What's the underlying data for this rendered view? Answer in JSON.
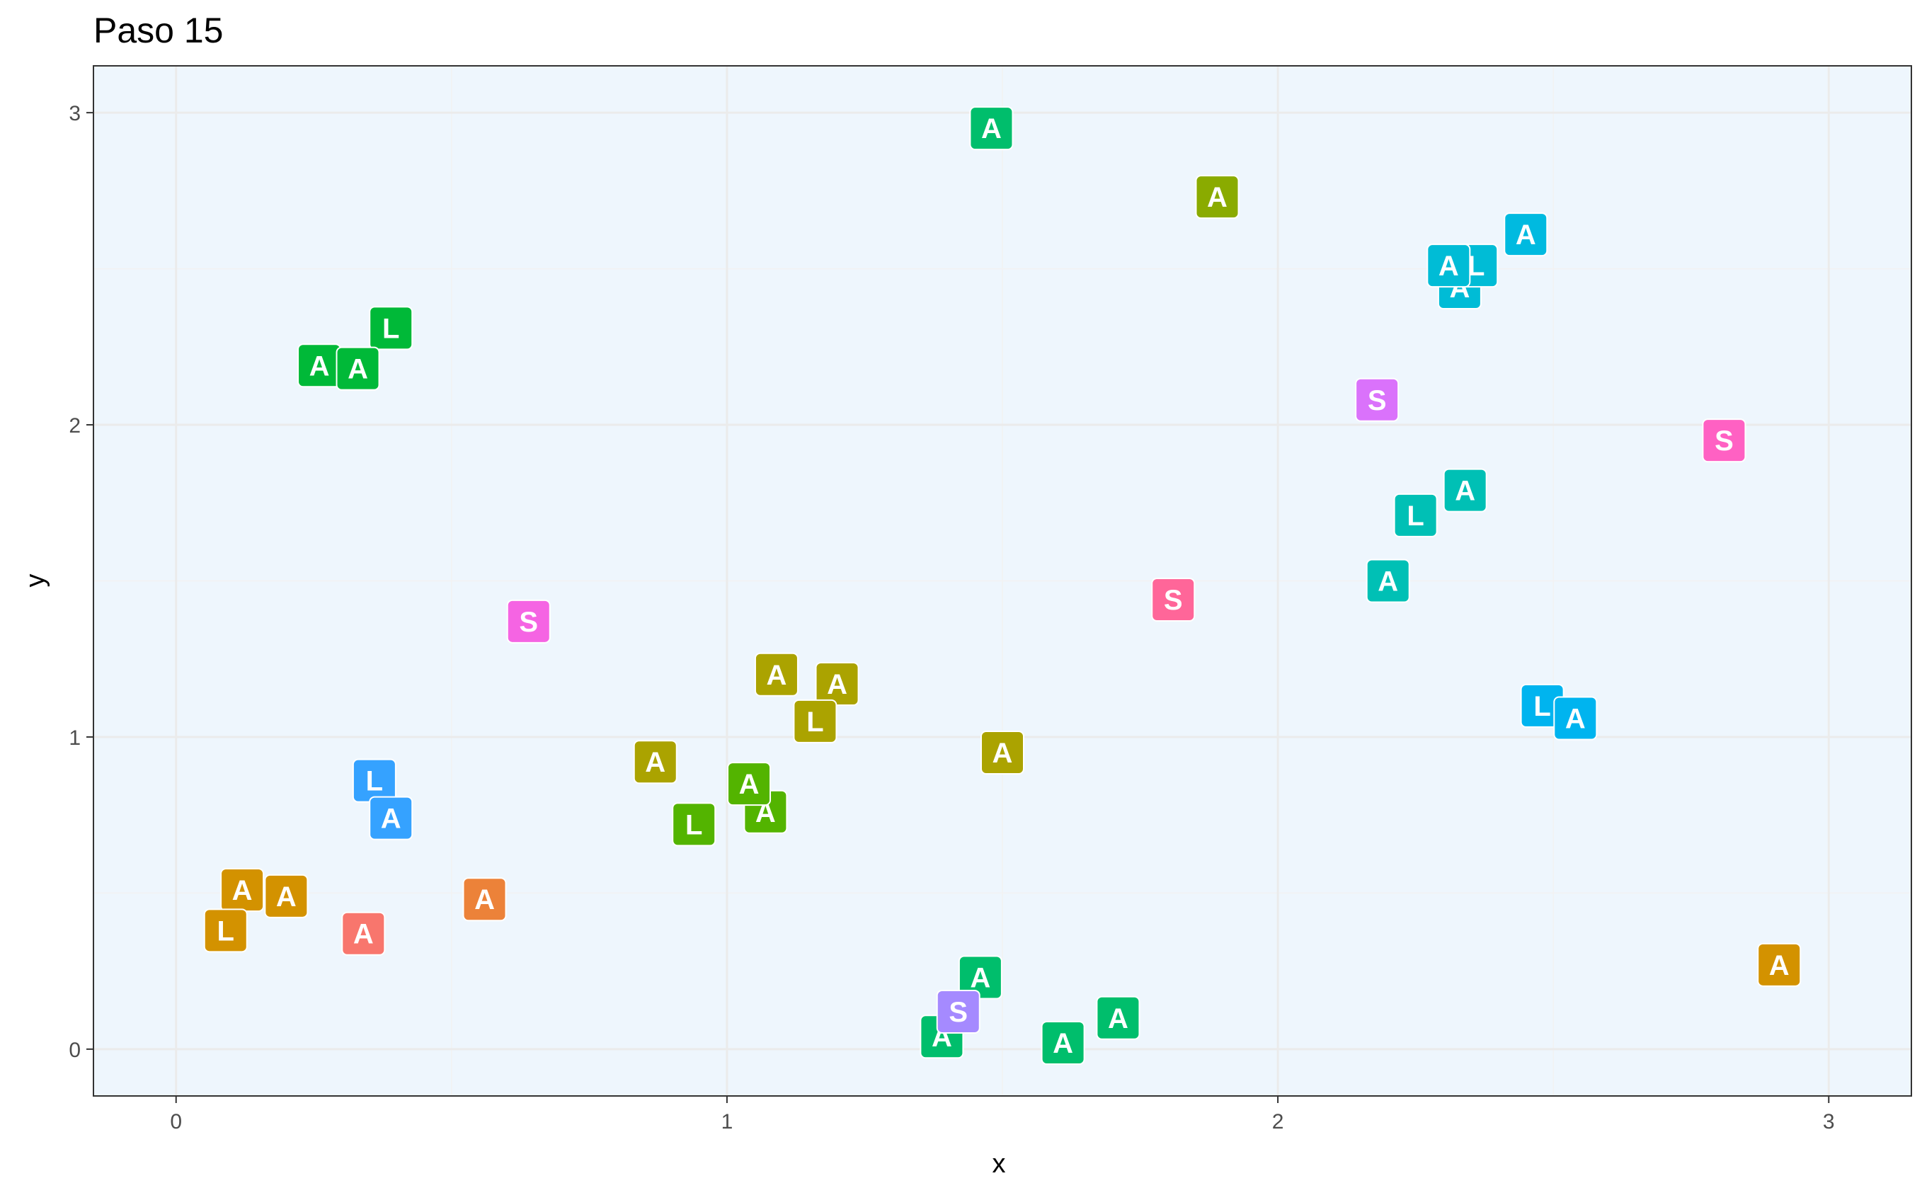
{
  "chart_data": {
    "type": "scatter",
    "title": "Paso 15",
    "xlabel": "x",
    "ylabel": "y",
    "xlim": [
      -0.15,
      3.15
    ],
    "ylim": [
      -0.15,
      3.15
    ],
    "x_ticks": [
      0,
      1,
      2,
      3
    ],
    "y_ticks": [
      0,
      1,
      2,
      3
    ],
    "grid": true,
    "panel_background": "#eef6fd",
    "points": [
      {
        "x": 1.48,
        "y": 2.95,
        "label": "A",
        "color": "#00BE6C"
      },
      {
        "x": 1.89,
        "y": 2.73,
        "label": "A",
        "color": "#8AAB00"
      },
      {
        "x": 0.39,
        "y": 2.31,
        "label": "L",
        "color": "#00B938"
      },
      {
        "x": 0.26,
        "y": 2.19,
        "label": "A",
        "color": "#00B938"
      },
      {
        "x": 0.33,
        "y": 2.18,
        "label": "A",
        "color": "#00B938"
      },
      {
        "x": 2.45,
        "y": 2.61,
        "label": "A",
        "color": "#00BAE0"
      },
      {
        "x": 2.33,
        "y": 2.44,
        "label": "A",
        "color": "#00BCD6"
      },
      {
        "x": 2.36,
        "y": 2.51,
        "label": "L",
        "color": "#00BCD6"
      },
      {
        "x": 2.31,
        "y": 2.51,
        "label": "A",
        "color": "#00BCD6"
      },
      {
        "x": 2.18,
        "y": 2.08,
        "label": "S",
        "color": "#DA72FB"
      },
      {
        "x": 2.81,
        "y": 1.95,
        "label": "S",
        "color": "#FF61C3"
      },
      {
        "x": 2.34,
        "y": 1.79,
        "label": "A",
        "color": "#00C0B5"
      },
      {
        "x": 2.25,
        "y": 1.71,
        "label": "L",
        "color": "#00C0B5"
      },
      {
        "x": 2.2,
        "y": 1.5,
        "label": "A",
        "color": "#00C0B5"
      },
      {
        "x": 1.81,
        "y": 1.44,
        "label": "S",
        "color": "#FF6699"
      },
      {
        "x": 0.64,
        "y": 1.37,
        "label": "S",
        "color": "#F564E3"
      },
      {
        "x": 2.48,
        "y": 1.1,
        "label": "L",
        "color": "#00B4EF"
      },
      {
        "x": 2.54,
        "y": 1.06,
        "label": "A",
        "color": "#00B4EF"
      },
      {
        "x": 1.09,
        "y": 1.2,
        "label": "A",
        "color": "#ABA300"
      },
      {
        "x": 1.2,
        "y": 1.17,
        "label": "A",
        "color": "#ABA300"
      },
      {
        "x": 1.16,
        "y": 1.05,
        "label": "L",
        "color": "#ABA300"
      },
      {
        "x": 1.5,
        "y": 0.95,
        "label": "A",
        "color": "#ABA300"
      },
      {
        "x": 0.87,
        "y": 0.92,
        "label": "A",
        "color": "#ABA300"
      },
      {
        "x": 0.36,
        "y": 0.86,
        "label": "L",
        "color": "#35A2FF"
      },
      {
        "x": 0.39,
        "y": 0.74,
        "label": "A",
        "color": "#35A2FF"
      },
      {
        "x": 1.07,
        "y": 0.76,
        "label": "A",
        "color": "#53B400"
      },
      {
        "x": 1.04,
        "y": 0.85,
        "label": "A",
        "color": "#53B400"
      },
      {
        "x": 0.94,
        "y": 0.72,
        "label": "L",
        "color": "#53B400"
      },
      {
        "x": 0.12,
        "y": 0.51,
        "label": "A",
        "color": "#D39200"
      },
      {
        "x": 0.2,
        "y": 0.49,
        "label": "A",
        "color": "#D39200"
      },
      {
        "x": 0.09,
        "y": 0.38,
        "label": "L",
        "color": "#D39200"
      },
      {
        "x": 0.56,
        "y": 0.48,
        "label": "A",
        "color": "#EC8239"
      },
      {
        "x": 0.34,
        "y": 0.37,
        "label": "A",
        "color": "#F8766D"
      },
      {
        "x": 2.91,
        "y": 0.27,
        "label": "A",
        "color": "#D39200"
      },
      {
        "x": 1.46,
        "y": 0.23,
        "label": "A",
        "color": "#00BE6C"
      },
      {
        "x": 1.39,
        "y": 0.04,
        "label": "A",
        "color": "#00BE6C"
      },
      {
        "x": 1.42,
        "y": 0.12,
        "label": "S",
        "color": "#A58AFF"
      },
      {
        "x": 1.71,
        "y": 0.1,
        "label": "A",
        "color": "#00BE6C"
      },
      {
        "x": 1.61,
        "y": 0.02,
        "label": "A",
        "color": "#00BE6C"
      }
    ]
  }
}
